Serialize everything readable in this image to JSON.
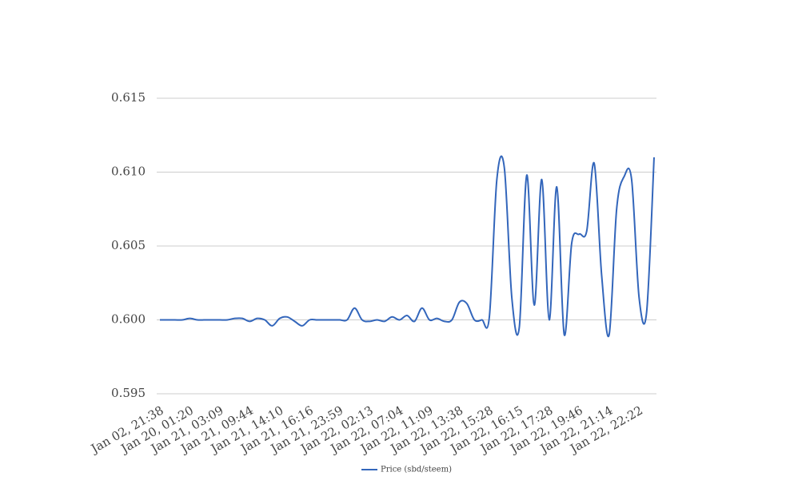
{
  "chart_data": {
    "type": "line",
    "categories": [
      "Jan 02, 21:38",
      null,
      null,
      null,
      "Jan 20, 01:20",
      null,
      null,
      null,
      "Jan 21, 03:09",
      null,
      null,
      null,
      "Jan 21, 09:44",
      null,
      null,
      null,
      "Jan 21, 14:10",
      null,
      null,
      null,
      "Jan 21, 16:16",
      null,
      null,
      null,
      "Jan 21, 23:59",
      null,
      null,
      null,
      "Jan 22, 02:13",
      null,
      null,
      null,
      "Jan 22, 07:04",
      null,
      null,
      null,
      "Jan 22, 11:09",
      null,
      null,
      null,
      "Jan 22, 13:38",
      null,
      null,
      null,
      "Jan 22, 15:28",
      null,
      null,
      null,
      "Jan 22, 16:15",
      null,
      null,
      null,
      "Jan 22, 17:28",
      null,
      null,
      null,
      "Jan 22, 19:46",
      null,
      null,
      null,
      "Jan 22, 21:14",
      null,
      null,
      null,
      "Jan 22, 22:22",
      null,
      null
    ],
    "series": [
      {
        "name": "Price (sbd/steem)",
        "color": "#3366bb",
        "values": [
          0.6,
          0.6,
          0.6,
          0.6,
          0.6001,
          0.6,
          0.6,
          0.6,
          0.6,
          0.6,
          0.6001,
          0.6001,
          0.5999,
          0.6001,
          0.6,
          0.5996,
          0.6001,
          0.6002,
          0.5999,
          0.5996,
          0.6,
          0.6,
          0.6,
          0.6,
          0.6,
          0.6,
          0.6008,
          0.6,
          0.5999,
          0.6,
          0.5999,
          0.6002,
          0.6,
          0.6003,
          0.5999,
          0.6008,
          0.6,
          0.6001,
          0.5999,
          0.6,
          0.6012,
          0.6011,
          0.6,
          0.6,
          0.6002,
          0.6095,
          0.6103,
          0.6015,
          0.5995,
          0.6098,
          0.601,
          0.6095,
          0.6,
          0.609,
          0.599,
          0.6052,
          0.6058,
          0.606,
          0.6106,
          0.603,
          0.599,
          0.6075,
          0.6097,
          0.6095,
          0.6015,
          0.6005,
          0.611
        ]
      }
    ],
    "ylim": [
      0.595,
      0.615
    ],
    "yticks": [
      0.595,
      {
        "value": 0.6,
        "label": "0.600"
      },
      0.605,
      {
        "value": 0.61,
        "label": "0.610"
      },
      0.615
    ],
    "grid": true,
    "legend": "bottom"
  }
}
